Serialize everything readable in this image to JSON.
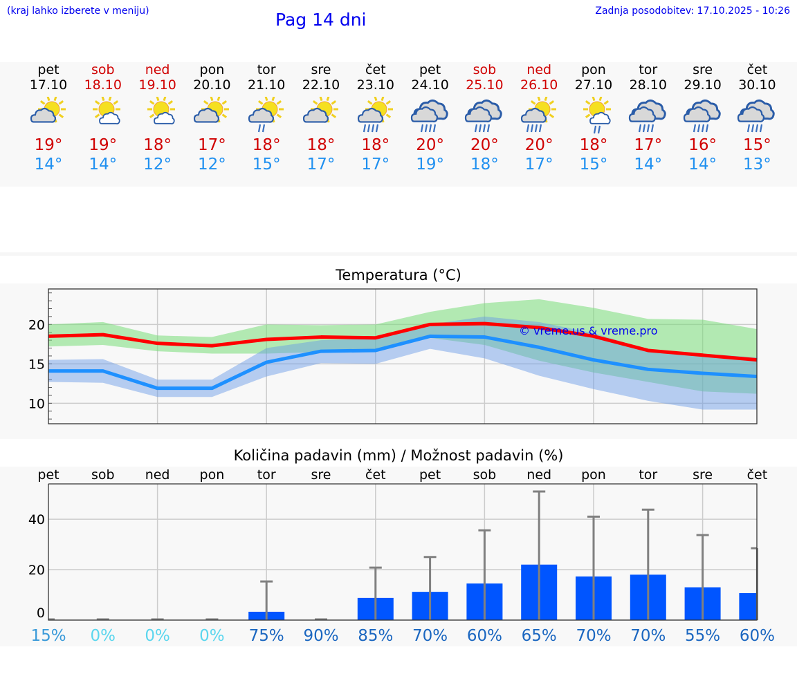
{
  "header": {
    "location_hint": "(kraj lahko izberete v meniju)",
    "title": "Pag 14 dni",
    "last_update": "Zadnja posodobitev: 17.10.2025 - 10:26"
  },
  "colors": {
    "weekend": "#d00000",
    "max": "#d00000",
    "min": "#2090f0",
    "bar": "#0055ff"
  },
  "days": [
    {
      "name": "pet",
      "date": "17.10",
      "weekend": false,
      "icon": "sun-cloud",
      "max": "19°",
      "min": "14°"
    },
    {
      "name": "sob",
      "date": "18.10",
      "weekend": true,
      "icon": "sun-small-cloud",
      "max": "19°",
      "min": "14°"
    },
    {
      "name": "ned",
      "date": "19.10",
      "weekend": true,
      "icon": "sun-small-cloud",
      "max": "18°",
      "min": "12°"
    },
    {
      "name": "pon",
      "date": "20.10",
      "weekend": false,
      "icon": "sun-cloud",
      "max": "17°",
      "min": "12°"
    },
    {
      "name": "tor",
      "date": "21.10",
      "weekend": false,
      "icon": "sun-cloud-light-rain",
      "max": "18°",
      "min": "15°"
    },
    {
      "name": "sre",
      "date": "22.10",
      "weekend": false,
      "icon": "sun-cloud",
      "max": "18°",
      "min": "17°"
    },
    {
      "name": "čet",
      "date": "23.10",
      "weekend": false,
      "icon": "sun-cloud-rain",
      "max": "18°",
      "min": "17°"
    },
    {
      "name": "pet",
      "date": "24.10",
      "weekend": false,
      "icon": "cloud-rain",
      "max": "20°",
      "min": "19°"
    },
    {
      "name": "sob",
      "date": "25.10",
      "weekend": true,
      "icon": "cloud-rain",
      "max": "20°",
      "min": "18°"
    },
    {
      "name": "ned",
      "date": "26.10",
      "weekend": true,
      "icon": "sun-cloud-rain",
      "max": "20°",
      "min": "17°"
    },
    {
      "name": "pon",
      "date": "27.10",
      "weekend": false,
      "icon": "sun-small-cloud-rain",
      "max": "18°",
      "min": "15°"
    },
    {
      "name": "tor",
      "date": "28.10",
      "weekend": false,
      "icon": "cloud-rain",
      "max": "17°",
      "min": "14°"
    },
    {
      "name": "sre",
      "date": "29.10",
      "weekend": false,
      "icon": "cloud-rain",
      "max": "16°",
      "min": "14°"
    },
    {
      "name": "čet",
      "date": "30.10",
      "weekend": false,
      "icon": "cloud-rain",
      "max": "15°",
      "min": "13°"
    }
  ],
  "chart_data": [
    {
      "type": "line",
      "title": "Temperatura (°C)",
      "watermark": "© vreme.us & vreme.pro",
      "ylim": [
        7.4,
        24.5
      ],
      "yticks": [
        "10",
        "15",
        "20"
      ],
      "x": [
        0,
        1,
        2,
        3,
        4,
        5,
        6,
        7,
        8,
        9,
        10,
        11,
        12,
        13
      ],
      "series": [
        {
          "name": "max",
          "color": "#ff0000",
          "values": [
            18.5,
            18.7,
            17.6,
            17.3,
            18.1,
            18.4,
            18.3,
            20.0,
            20.1,
            19.6,
            18.5,
            16.7,
            16.1,
            15.5
          ],
          "band_upper": [
            20.0,
            20.3,
            18.6,
            18.4,
            20.0,
            19.9,
            20.0,
            21.6,
            22.7,
            23.2,
            22.1,
            20.7,
            20.6,
            19.4
          ],
          "band_lower": [
            17.2,
            17.4,
            16.6,
            16.3,
            16.3,
            16.5,
            16.5,
            18.3,
            17.4,
            15.4,
            13.9,
            12.7,
            11.5,
            11.2
          ]
        },
        {
          "name": "min",
          "color": "#1e90ff",
          "values": [
            14.1,
            14.1,
            11.9,
            11.9,
            15.2,
            16.6,
            16.7,
            18.5,
            18.4,
            17.1,
            15.5,
            14.3,
            13.8,
            13.4
          ],
          "band_upper": [
            15.5,
            15.6,
            13.0,
            13.0,
            17.0,
            18.0,
            18.2,
            20.0,
            21.0,
            20.3,
            18.9,
            16.8,
            16.3,
            15.8
          ],
          "band_lower": [
            12.7,
            12.6,
            10.8,
            10.8,
            13.4,
            15.1,
            15.0,
            16.9,
            15.7,
            13.5,
            11.8,
            10.3,
            9.2,
            9.2
          ]
        }
      ]
    },
    {
      "type": "bar",
      "title": "Količina padavin (mm) / Možnost padavin (%)",
      "ylim": [
        0,
        54
      ],
      "yticks": [
        "0",
        "20",
        "40"
      ],
      "categories": [
        "pet",
        "sob",
        "ned",
        "pon",
        "tor",
        "sre",
        "čet",
        "pet",
        "sob",
        "ned",
        "pon",
        "tor",
        "sre",
        "čet"
      ],
      "values": [
        0,
        0,
        0,
        0,
        3.3,
        0,
        8.8,
        11.2,
        14.5,
        22,
        17.3,
        18,
        13,
        10.7
      ],
      "error_upper": [
        0,
        0,
        0,
        0,
        15.3,
        0,
        20.8,
        25,
        35.6,
        51,
        41,
        43.8,
        33.7,
        28.5
      ],
      "probability": [
        "15%",
        "0%",
        "0%",
        "0%",
        "75%",
        "90%",
        "85%",
        "70%",
        "60%",
        "65%",
        "70%",
        "70%",
        "55%",
        "60%"
      ]
    }
  ]
}
